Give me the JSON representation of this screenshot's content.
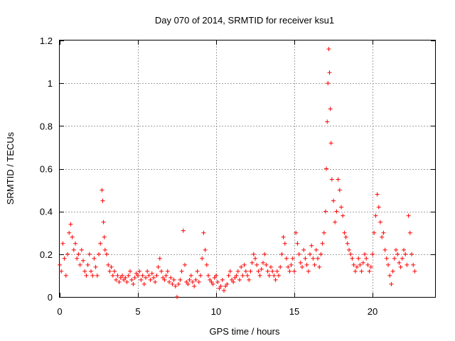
{
  "chart_data": {
    "type": "scatter",
    "title": "Day 070 of 2014, SRMTID for receiver ksu1",
    "xlabel": "GPS time / hours",
    "ylabel": "SRMTID / TECUs",
    "xlim": [
      0,
      24
    ],
    "ylim": [
      0,
      1.2
    ],
    "x_ticks": [
      0,
      5,
      10,
      15,
      20
    ],
    "x_tick_labels": [
      "0",
      "5",
      "10",
      "15",
      "20"
    ],
    "y_ticks": [
      0,
      0.2,
      0.4,
      0.6,
      0.8,
      1.0,
      1.2
    ],
    "y_tick_labels": [
      "0",
      "0.2",
      "0.4",
      "0.6",
      "0.8",
      "1",
      "1.2"
    ],
    "grid": true,
    "marker": "+",
    "colors": {
      "series": "#ff0000",
      "grid": "#a0a0a0",
      "axes": "#000000"
    },
    "series": [
      {
        "name": "SRMTID",
        "x": [
          0.0,
          0.1,
          0.2,
          0.3,
          0.4,
          0.5,
          0.6,
          0.7,
          0.8,
          0.9,
          1.0,
          1.1,
          1.2,
          1.3,
          1.4,
          1.5,
          1.6,
          1.7,
          1.8,
          1.9,
          2.0,
          2.1,
          2.2,
          2.3,
          2.4,
          2.5,
          2.6,
          2.7,
          2.75,
          2.8,
          2.85,
          2.9,
          3.0,
          3.1,
          3.2,
          3.3,
          3.4,
          3.5,
          3.6,
          3.7,
          3.8,
          3.9,
          4.0,
          4.1,
          4.2,
          4.3,
          4.4,
          4.5,
          4.6,
          4.7,
          4.8,
          4.9,
          5.0,
          5.1,
          5.2,
          5.3,
          5.4,
          5.5,
          5.6,
          5.7,
          5.8,
          5.9,
          6.0,
          6.1,
          6.2,
          6.3,
          6.4,
          6.5,
          6.6,
          6.7,
          6.8,
          6.9,
          7.0,
          7.1,
          7.2,
          7.3,
          7.4,
          7.5,
          7.6,
          7.7,
          7.8,
          7.9,
          8.0,
          8.1,
          8.2,
          8.3,
          8.4,
          8.5,
          8.6,
          8.7,
          8.8,
          8.9,
          9.0,
          9.1,
          9.2,
          9.3,
          9.4,
          9.5,
          9.6,
          9.7,
          9.8,
          9.9,
          10.0,
          10.1,
          10.2,
          10.3,
          10.4,
          10.5,
          10.6,
          10.7,
          10.8,
          10.9,
          11.0,
          11.1,
          11.2,
          11.3,
          11.4,
          11.5,
          11.6,
          11.7,
          11.8,
          11.9,
          12.0,
          12.1,
          12.2,
          12.3,
          12.4,
          12.5,
          12.6,
          12.7,
          12.8,
          12.9,
          13.0,
          13.1,
          13.2,
          13.3,
          13.4,
          13.5,
          13.6,
          13.7,
          13.8,
          13.9,
          14.0,
          14.1,
          14.2,
          14.3,
          14.4,
          14.5,
          14.6,
          14.7,
          14.8,
          14.9,
          15.0,
          15.1,
          15.2,
          15.3,
          15.4,
          15.5,
          15.6,
          15.7,
          15.8,
          15.9,
          16.0,
          16.1,
          16.2,
          16.3,
          16.4,
          16.5,
          16.6,
          16.7,
          16.8,
          16.9,
          17.0,
          17.05,
          17.1,
          17.15,
          17.2,
          17.25,
          17.3,
          17.35,
          17.4,
          17.5,
          17.6,
          17.7,
          17.8,
          17.9,
          18.0,
          18.1,
          18.2,
          18.3,
          18.4,
          18.5,
          18.6,
          18.7,
          18.8,
          18.9,
          19.0,
          19.1,
          19.2,
          19.3,
          19.4,
          19.5,
          19.6,
          19.7,
          19.8,
          19.9,
          20.0,
          20.1,
          20.2,
          20.3,
          20.4,
          20.5,
          20.6,
          20.7,
          20.8,
          20.9,
          21.0,
          21.1,
          21.2,
          21.3,
          21.4,
          21.5,
          21.6,
          21.7,
          21.8,
          21.9,
          22.0,
          22.1,
          22.2,
          22.3,
          22.4,
          22.5,
          22.6,
          22.7
        ],
        "y": [
          0.15,
          0.12,
          0.25,
          0.18,
          0.1,
          0.2,
          0.3,
          0.34,
          0.28,
          0.22,
          0.25,
          0.18,
          0.2,
          0.15,
          0.22,
          0.17,
          0.12,
          0.1,
          0.15,
          0.2,
          0.12,
          0.1,
          0.18,
          0.14,
          0.1,
          0.2,
          0.25,
          0.5,
          0.45,
          0.35,
          0.28,
          0.22,
          0.2,
          0.15,
          0.12,
          0.14,
          0.1,
          0.12,
          0.08,
          0.1,
          0.07,
          0.09,
          0.1,
          0.08,
          0.09,
          0.07,
          0.1,
          0.12,
          0.08,
          0.06,
          0.09,
          0.11,
          0.1,
          0.12,
          0.08,
          0.1,
          0.06,
          0.09,
          0.12,
          0.1,
          0.08,
          0.11,
          0.09,
          0.07,
          0.1,
          0.14,
          0.18,
          0.12,
          0.09,
          0.08,
          0.1,
          0.12,
          0.07,
          0.09,
          0.06,
          0.08,
          0.05,
          0.0,
          0.06,
          0.08,
          0.12,
          0.31,
          0.15,
          0.07,
          0.06,
          0.08,
          0.1,
          0.07,
          0.05,
          0.08,
          0.12,
          0.07,
          0.1,
          0.18,
          0.3,
          0.22,
          0.15,
          0.1,
          0.08,
          0.07,
          0.06,
          0.09,
          0.1,
          0.07,
          0.04,
          0.05,
          0.08,
          0.03,
          0.05,
          0.06,
          0.1,
          0.12,
          0.08,
          0.07,
          0.09,
          0.1,
          0.12,
          0.08,
          0.14,
          0.1,
          0.15,
          0.12,
          0.1,
          0.08,
          0.12,
          0.16,
          0.2,
          0.18,
          0.15,
          0.12,
          0.1,
          0.13,
          0.16,
          0.2,
          0.15,
          0.12,
          0.1,
          0.14,
          0.12,
          0.1,
          0.08,
          0.12,
          0.1,
          0.14,
          0.2,
          0.28,
          0.25,
          0.18,
          0.14,
          0.12,
          0.15,
          0.18,
          0.12,
          0.3,
          0.25,
          0.2,
          0.16,
          0.14,
          0.22,
          0.18,
          0.15,
          0.12,
          0.2,
          0.24,
          0.18,
          0.15,
          0.22,
          0.18,
          0.14,
          0.2,
          0.25,
          0.3,
          0.4,
          0.6,
          0.82,
          1.0,
          1.16,
          1.05,
          0.88,
          0.72,
          0.55,
          0.45,
          0.35,
          0.4,
          0.55,
          0.5,
          0.42,
          0.38,
          0.3,
          0.28,
          0.25,
          0.22,
          0.2,
          0.18,
          0.15,
          0.12,
          0.14,
          0.18,
          0.15,
          0.12,
          0.16,
          0.2,
          0.18,
          0.15,
          0.12,
          0.14,
          0.2,
          0.3,
          0.38,
          0.48,
          0.42,
          0.35,
          0.28,
          0.3,
          0.22,
          0.18,
          0.15,
          0.1,
          0.06,
          0.12,
          0.18,
          0.22,
          0.2,
          0.16,
          0.14,
          0.18,
          0.22,
          0.2,
          0.15,
          0.38,
          0.3,
          0.2,
          0.15,
          0.12
        ]
      }
    ]
  }
}
